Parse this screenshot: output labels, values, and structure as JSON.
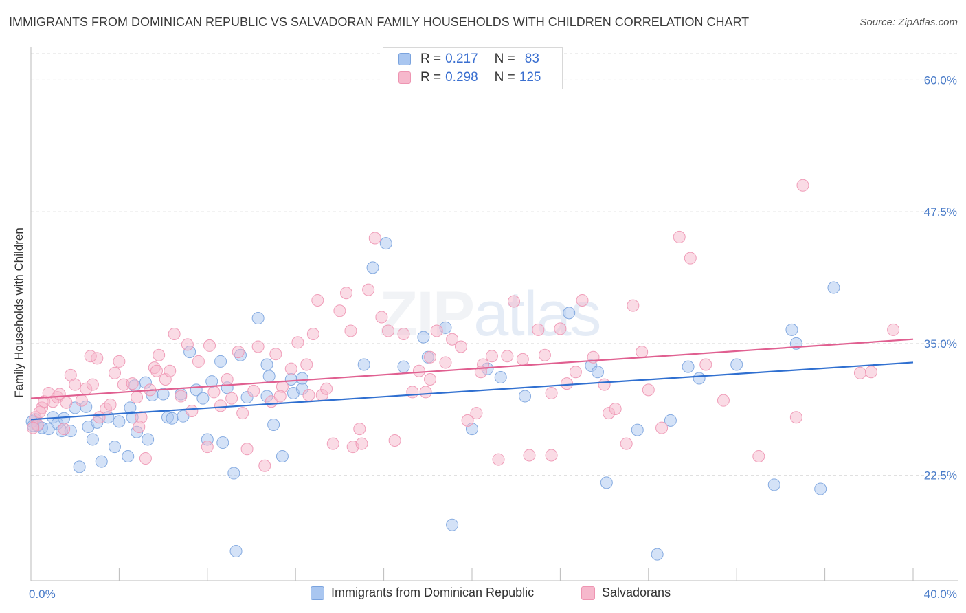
{
  "title": "IMMIGRANTS FROM DOMINICAN REPUBLIC VS SALVADORAN FAMILY HOUSEHOLDS WITH CHILDREN CORRELATION CHART",
  "source": "Source: ZipAtlas.com",
  "watermark": {
    "zip": "ZIP",
    "atlas": "atlas"
  },
  "legend": {
    "rows": [
      {
        "r_label": "R = ",
        "r_value": "0.217",
        "n_label": "N = ",
        "n_value": "83"
      },
      {
        "r_label": "R = ",
        "r_value": "0.298",
        "n_label": "N = ",
        "n_value": "125"
      }
    ]
  },
  "bottom_legend": [
    "Immigrants from Dominican Republic",
    "Salvadorans"
  ],
  "colors": {
    "blue_fill": "#a9c6f0",
    "blue_stroke": "#7aa3de",
    "blue_line": "#2f6fd0",
    "pink_fill": "#f6b8cc",
    "pink_stroke": "#ee95b2",
    "pink_line": "#e05f90",
    "tick_text": "#4a7cc9",
    "grid": "#dcdcdc"
  },
  "chart_data": {
    "type": "scatter",
    "title": "IMMIGRANTS FROM DOMINICAN REPUBLIC VS SALVADORAN FAMILY HOUSEHOLDS WITH CHILDREN CORRELATION CHART",
    "xlabel": "",
    "ylabel": "Family Households with Children",
    "xlim": [
      0,
      40
    ],
    "ylim": [
      12.5,
      62.5
    ],
    "x_tick_labels": [
      "0.0%",
      "40.0%"
    ],
    "y_ticks": [
      22.5,
      35.0,
      47.5,
      60.0
    ],
    "y_tick_labels": [
      "22.5%",
      "35.0%",
      "47.5%",
      "60.0%"
    ],
    "grid": "horizontal dashed",
    "legend_position": "top-center",
    "series": [
      {
        "name": "Immigrants from Dominican Republic",
        "r": 0.217,
        "n": 83,
        "trend": {
          "x": [
            0,
            40
          ],
          "y": [
            27.8,
            33.2
          ]
        },
        "points": [
          [
            0.2,
            27.8
          ],
          [
            0.3,
            27.2
          ],
          [
            0.5,
            27.0
          ],
          [
            0.8,
            26.9
          ],
          [
            1.0,
            28.0
          ],
          [
            1.2,
            27.4
          ],
          [
            1.4,
            26.7
          ],
          [
            1.5,
            27.9
          ],
          [
            1.8,
            26.7
          ],
          [
            2.0,
            28.9
          ],
          [
            2.2,
            23.3
          ],
          [
            2.5,
            29.0
          ],
          [
            2.6,
            27.1
          ],
          [
            2.8,
            25.9
          ],
          [
            3.0,
            27.5
          ],
          [
            3.2,
            23.8
          ],
          [
            3.5,
            28.0
          ],
          [
            3.8,
            25.2
          ],
          [
            4.0,
            27.6
          ],
          [
            4.4,
            24.3
          ],
          [
            4.5,
            28.9
          ],
          [
            4.6,
            28.0
          ],
          [
            4.8,
            26.6
          ],
          [
            5.2,
            31.3
          ],
          [
            5.3,
            25.9
          ],
          [
            5.5,
            30.1
          ],
          [
            6.0,
            30.2
          ],
          [
            6.2,
            28.0
          ],
          [
            6.4,
            27.9
          ],
          [
            6.8,
            30.2
          ],
          [
            6.9,
            28.1
          ],
          [
            7.2,
            34.2
          ],
          [
            7.5,
            30.6
          ],
          [
            7.8,
            29.8
          ],
          [
            8.0,
            25.9
          ],
          [
            8.2,
            31.4
          ],
          [
            8.6,
            33.3
          ],
          [
            8.7,
            25.6
          ],
          [
            8.9,
            30.8
          ],
          [
            9.2,
            22.7
          ],
          [
            9.3,
            15.3
          ],
          [
            9.5,
            33.9
          ],
          [
            9.8,
            29.9
          ],
          [
            10.3,
            37.4
          ],
          [
            10.8,
            31.9
          ],
          [
            10.7,
            33.0
          ],
          [
            11.0,
            27.3
          ],
          [
            11.4,
            24.3
          ],
          [
            11.8,
            31.6
          ],
          [
            11.9,
            30.3
          ],
          [
            12.3,
            30.7
          ],
          [
            12.3,
            31.7
          ],
          [
            15.5,
            42.2
          ],
          [
            16.1,
            44.5
          ],
          [
            16.9,
            32.8
          ],
          [
            17.8,
            35.6
          ],
          [
            18.0,
            33.7
          ],
          [
            18.8,
            36.5
          ],
          [
            19.1,
            17.8
          ],
          [
            20.0,
            26.9
          ],
          [
            20.7,
            32.6
          ],
          [
            21.3,
            31.8
          ],
          [
            22.4,
            30.0
          ],
          [
            24.4,
            37.9
          ],
          [
            25.4,
            32.9
          ],
          [
            25.7,
            32.3
          ],
          [
            26.1,
            21.8
          ],
          [
            27.5,
            26.8
          ],
          [
            28.4,
            15.0
          ],
          [
            29.0,
            27.7
          ],
          [
            29.8,
            32.8
          ],
          [
            30.3,
            31.7
          ],
          [
            32.0,
            33.0
          ],
          [
            33.7,
            21.6
          ],
          [
            34.5,
            36.3
          ],
          [
            34.7,
            35.0
          ],
          [
            35.8,
            21.2
          ],
          [
            36.4,
            40.3
          ],
          [
            0.05,
            27.6
          ],
          [
            0.1,
            27.2
          ],
          [
            4.7,
            31.0
          ],
          [
            10.7,
            30.0
          ],
          [
            15.1,
            33.0
          ]
        ]
      },
      {
        "name": "Salvadorans",
        "r": 0.298,
        "n": 125,
        "trend": {
          "x": [
            0,
            40
          ],
          "y": [
            29.8,
            35.4
          ]
        },
        "points": [
          [
            0.2,
            28.0
          ],
          [
            0.3,
            27.3
          ],
          [
            0.5,
            28.9
          ],
          [
            0.6,
            29.5
          ],
          [
            0.8,
            30.3
          ],
          [
            1.0,
            29.5
          ],
          [
            1.2,
            29.9
          ],
          [
            1.3,
            30.2
          ],
          [
            1.5,
            26.9
          ],
          [
            1.8,
            32.0
          ],
          [
            2.0,
            31.1
          ],
          [
            2.3,
            29.6
          ],
          [
            2.5,
            30.7
          ],
          [
            2.8,
            31.1
          ],
          [
            3.0,
            33.6
          ],
          [
            3.4,
            28.8
          ],
          [
            3.6,
            29.2
          ],
          [
            3.8,
            32.2
          ],
          [
            4.0,
            33.3
          ],
          [
            4.2,
            31.1
          ],
          [
            4.6,
            31.2
          ],
          [
            4.8,
            29.9
          ],
          [
            5.0,
            28.0
          ],
          [
            5.2,
            24.1
          ],
          [
            5.4,
            30.6
          ],
          [
            5.6,
            32.7
          ],
          [
            5.8,
            33.9
          ],
          [
            6.1,
            31.6
          ],
          [
            6.3,
            32.4
          ],
          [
            6.5,
            35.9
          ],
          [
            6.8,
            30.0
          ],
          [
            7.1,
            34.9
          ],
          [
            7.3,
            28.6
          ],
          [
            7.6,
            33.3
          ],
          [
            8.1,
            34.8
          ],
          [
            8.3,
            30.4
          ],
          [
            8.6,
            29.1
          ],
          [
            8.9,
            31.6
          ],
          [
            9.1,
            29.8
          ],
          [
            9.4,
            34.2
          ],
          [
            9.6,
            28.4
          ],
          [
            9.8,
            25.0
          ],
          [
            10.1,
            30.5
          ],
          [
            10.3,
            34.7
          ],
          [
            10.6,
            23.4
          ],
          [
            10.9,
            29.5
          ],
          [
            11.1,
            34.0
          ],
          [
            11.4,
            30.9
          ],
          [
            11.8,
            32.6
          ],
          [
            12.1,
            35.1
          ],
          [
            12.5,
            33.0
          ],
          [
            12.8,
            35.9
          ],
          [
            13.0,
            39.1
          ],
          [
            13.2,
            30.1
          ],
          [
            13.4,
            30.7
          ],
          [
            13.7,
            25.5
          ],
          [
            14.0,
            38.1
          ],
          [
            14.3,
            39.8
          ],
          [
            14.5,
            36.2
          ],
          [
            14.6,
            25.2
          ],
          [
            15.0,
            25.5
          ],
          [
            15.3,
            40.1
          ],
          [
            15.6,
            45.0
          ],
          [
            15.9,
            37.5
          ],
          [
            16.2,
            36.2
          ],
          [
            16.5,
            25.8
          ],
          [
            16.9,
            35.9
          ],
          [
            17.3,
            30.4
          ],
          [
            17.6,
            32.4
          ],
          [
            17.9,
            30.4
          ],
          [
            18.1,
            33.7
          ],
          [
            18.4,
            36.2
          ],
          [
            18.8,
            33.2
          ],
          [
            19.1,
            35.4
          ],
          [
            19.5,
            34.7
          ],
          [
            19.8,
            27.7
          ],
          [
            20.2,
            28.4
          ],
          [
            20.5,
            33.0
          ],
          [
            20.9,
            33.8
          ],
          [
            21.2,
            24.0
          ],
          [
            21.6,
            33.8
          ],
          [
            21.9,
            39.0
          ],
          [
            22.3,
            33.5
          ],
          [
            22.6,
            24.4
          ],
          [
            23.0,
            36.3
          ],
          [
            23.3,
            33.9
          ],
          [
            23.6,
            30.3
          ],
          [
            24.0,
            36.4
          ],
          [
            24.3,
            31.2
          ],
          [
            24.7,
            32.3
          ],
          [
            25.0,
            39.1
          ],
          [
            25.5,
            33.7
          ],
          [
            26.0,
            31.1
          ],
          [
            26.2,
            28.4
          ],
          [
            26.5,
            28.8
          ],
          [
            27.0,
            25.5
          ],
          [
            27.3,
            38.6
          ],
          [
            27.7,
            34.2
          ],
          [
            28.0,
            30.6
          ],
          [
            28.6,
            27.0
          ],
          [
            29.4,
            45.1
          ],
          [
            29.9,
            43.1
          ],
          [
            30.6,
            33.0
          ],
          [
            31.4,
            29.6
          ],
          [
            33.0,
            24.3
          ],
          [
            35.0,
            50.0
          ],
          [
            37.6,
            32.2
          ],
          [
            38.1,
            32.3
          ],
          [
            39.1,
            36.3
          ],
          [
            0.1,
            27.0
          ],
          [
            0.4,
            28.5
          ],
          [
            1.6,
            29.4
          ],
          [
            2.7,
            33.8
          ],
          [
            3.1,
            28.0
          ],
          [
            5.7,
            32.4
          ],
          [
            8.0,
            25.2
          ],
          [
            11.3,
            30.0
          ],
          [
            18.1,
            31.6
          ],
          [
            23.6,
            24.4
          ],
          [
            34.7,
            28.0
          ],
          [
            12.6,
            30.1
          ],
          [
            4.9,
            27.1
          ],
          [
            14.9,
            26.9
          ],
          [
            20.4,
            32.3
          ]
        ]
      }
    ]
  }
}
